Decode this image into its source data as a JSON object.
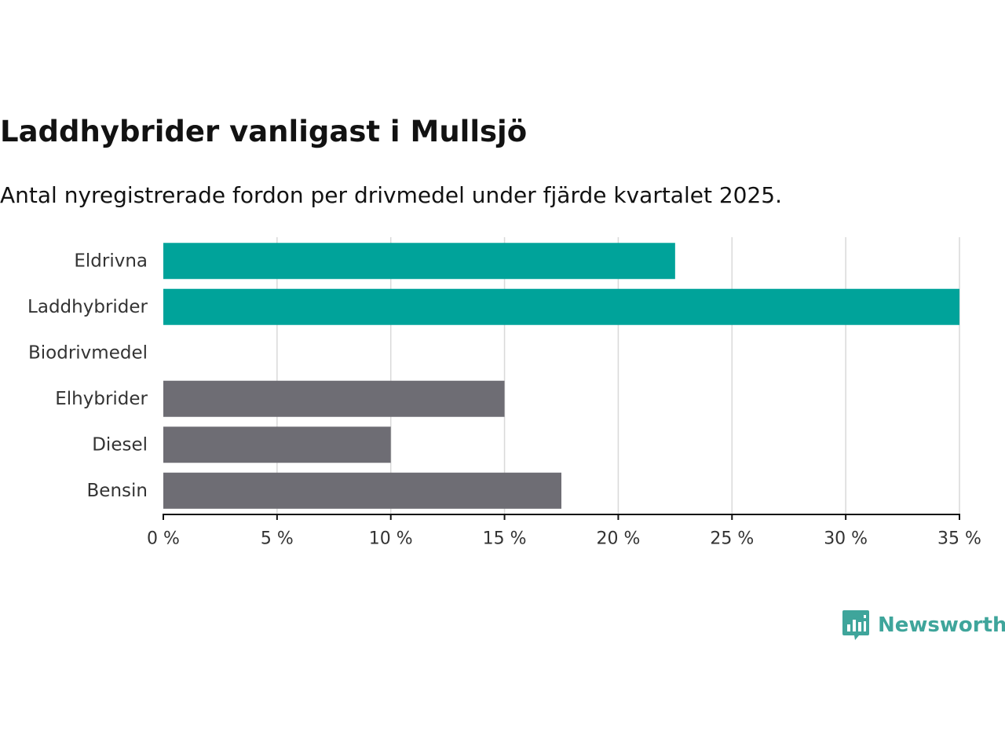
{
  "title": "Laddhybrider vanligast i Mullsjö",
  "subtitle": "Antal nyregistrerade fordon per drivmedel under fjärde kvartalet 2025.",
  "brand": "Newsworthy",
  "colors": {
    "highlight": "#00a39a",
    "muted": "#6e6d74",
    "grid": "#d9d9d9",
    "axis": "#121212",
    "brand": "#3fa59b"
  },
  "chart_data": {
    "type": "bar",
    "orientation": "horizontal",
    "categories": [
      "Eldrivna",
      "Laddhybrider",
      "Biodrivmedel",
      "Elhybrider",
      "Diesel",
      "Bensin"
    ],
    "values": [
      22.5,
      35,
      0,
      15,
      10,
      17.5
    ],
    "highlight": [
      true,
      true,
      true,
      false,
      false,
      false
    ],
    "unit": "%",
    "xlim": [
      0,
      35
    ],
    "ticks": [
      0,
      5,
      10,
      15,
      20,
      25,
      30,
      35
    ],
    "tick_labels": [
      "0 %",
      "5 %",
      "10 %",
      "15 %",
      "20 %",
      "25 %",
      "30 %",
      "35 %"
    ],
    "grid": true,
    "legend": "none"
  }
}
